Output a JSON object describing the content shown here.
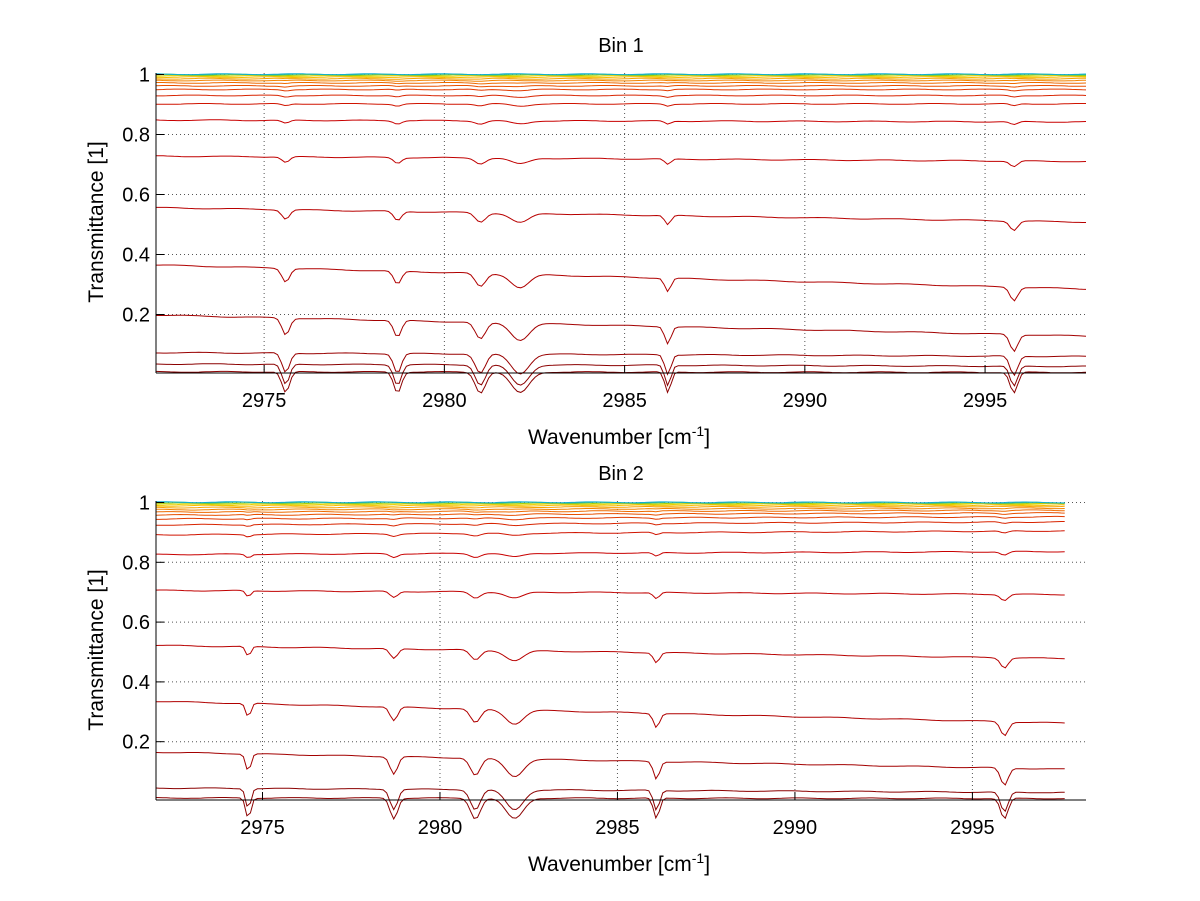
{
  "chart_data": [
    {
      "type": "line",
      "title": "Bin 1",
      "xlabel": "Wavenumber [cm",
      "xlabel_sup": "-1",
      "xlabel_end": "]",
      "ylabel": "Transmittance [1]",
      "xlim": [
        2972,
        2997.8
      ],
      "ylim": [
        0.005,
        1.005
      ],
      "xticks": [
        2975,
        2980,
        2985,
        2990,
        2995
      ],
      "yticks": [
        0.2,
        0.4,
        0.6,
        0.8,
        1
      ],
      "ytick_labels": [
        "0.2",
        "0.4",
        "0.6",
        "0.8",
        "1"
      ],
      "grid": true,
      "x_start": 2972,
      "x_end": 2997.8,
      "series": [
        {
          "start": 0.009,
          "end": 0.007,
          "color": "#8b0000"
        },
        {
          "start": 0.035,
          "end": 0.027,
          "color": "#8b0000"
        },
        {
          "start": 0.073,
          "end": 0.06,
          "color": "#990000"
        },
        {
          "start": 0.198,
          "end": 0.128,
          "color": "#a30000"
        },
        {
          "start": 0.365,
          "end": 0.285,
          "color": "#b00000"
        },
        {
          "start": 0.556,
          "end": 0.508,
          "color": "#b80000"
        },
        {
          "start": 0.728,
          "end": 0.71,
          "color": "#c00000"
        },
        {
          "start": 0.848,
          "end": 0.842,
          "color": "#c80000"
        },
        {
          "start": 0.902,
          "end": 0.902,
          "color": "#d01400"
        },
        {
          "start": 0.93,
          "end": 0.93,
          "color": "#d82400"
        },
        {
          "start": 0.95,
          "end": 0.95,
          "color": "#e03a00"
        },
        {
          "start": 0.962,
          "end": 0.962,
          "color": "#e85000"
        },
        {
          "start": 0.972,
          "end": 0.972,
          "color": "#ee6a00"
        },
        {
          "start": 0.98,
          "end": 0.98,
          "color": "#f28400"
        },
        {
          "start": 0.986,
          "end": 0.986,
          "color": "#f6a000"
        },
        {
          "start": 0.991,
          "end": 0.991,
          "color": "#f8bc00"
        },
        {
          "start": 0.995,
          "end": 0.995,
          "color": "#e8d000"
        },
        {
          "start": 0.998,
          "end": 0.998,
          "color": "#a8d000"
        },
        {
          "start": 1.0,
          "end": 1.0,
          "color": "#40c080"
        },
        {
          "start": 1.001,
          "end": 1.001,
          "color": "#10b0d0"
        }
      ],
      "absorption_lines": [
        {
          "x": 2975.6,
          "width": 0.15
        },
        {
          "x": 2978.7,
          "width": 0.15
        },
        {
          "x": 2981.0,
          "width": 0.2
        },
        {
          "x": 2982.1,
          "width": 0.35
        },
        {
          "x": 2986.2,
          "width": 0.12
        },
        {
          "x": 2995.8,
          "width": 0.15
        }
      ]
    },
    {
      "type": "line",
      "title": "Bin 2",
      "xlabel": "Wavenumber [cm",
      "xlabel_sup": "-1",
      "xlabel_end": "]",
      "ylabel": "Transmittance [1]",
      "xlim": [
        2972,
        2998.2
      ],
      "ylim": [
        0.005,
        1.005
      ],
      "xticks": [
        2975,
        2980,
        2985,
        2990,
        2995
      ],
      "yticks": [
        0.2,
        0.4,
        0.6,
        0.8,
        1
      ],
      "ytick_labels": [
        "0.2",
        "0.4",
        "0.6",
        "0.8",
        "1"
      ],
      "grid": true,
      "x_start": 2972,
      "x_end": 2997.6,
      "series": [
        {
          "start": 0.012,
          "end": 0.01,
          "color": "#8b0000"
        },
        {
          "start": 0.045,
          "end": 0.03,
          "color": "#8b0000"
        },
        {
          "start": 0.165,
          "end": 0.108,
          "color": "#a30000"
        },
        {
          "start": 0.335,
          "end": 0.262,
          "color": "#b00000"
        },
        {
          "start": 0.522,
          "end": 0.478,
          "color": "#b80000"
        },
        {
          "start": 0.706,
          "end": 0.692,
          "color": "#c00000"
        },
        {
          "start": 0.826,
          "end": 0.836,
          "color": "#c80000"
        },
        {
          "start": 0.892,
          "end": 0.905,
          "color": "#d01400"
        },
        {
          "start": 0.925,
          "end": 0.935,
          "color": "#d82400"
        },
        {
          "start": 0.945,
          "end": 0.952,
          "color": "#e03a00"
        },
        {
          "start": 0.958,
          "end": 0.965,
          "color": "#e85000"
        },
        {
          "start": 0.968,
          "end": 0.974,
          "color": "#ee6a00"
        },
        {
          "start": 0.976,
          "end": 0.981,
          "color": "#f28400"
        },
        {
          "start": 0.983,
          "end": 0.987,
          "color": "#f6a000"
        },
        {
          "start": 0.989,
          "end": 0.991,
          "color": "#f8bc00"
        },
        {
          "start": 0.993,
          "end": 0.995,
          "color": "#e8d000"
        },
        {
          "start": 0.997,
          "end": 0.997,
          "color": "#a8d000"
        },
        {
          "start": 1.0,
          "end": 0.999,
          "color": "#40c080"
        },
        {
          "start": 1.001,
          "end": 1.0,
          "color": "#10b0d0"
        }
      ],
      "absorption_lines": [
        {
          "x": 2974.6,
          "width": 0.1
        },
        {
          "x": 2978.7,
          "width": 0.15
        },
        {
          "x": 2981.0,
          "width": 0.2
        },
        {
          "x": 2982.1,
          "width": 0.35
        },
        {
          "x": 2986.1,
          "width": 0.12
        },
        {
          "x": 2995.9,
          "width": 0.15
        }
      ]
    }
  ]
}
